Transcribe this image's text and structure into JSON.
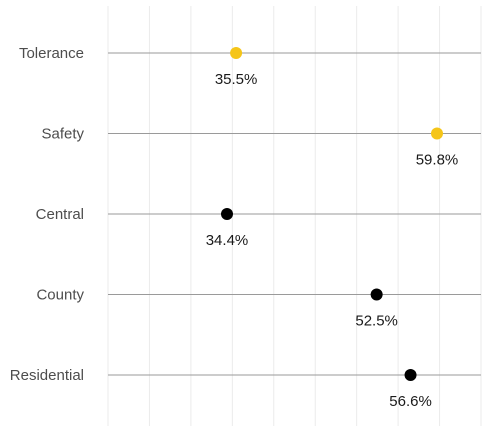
{
  "chart_data": {
    "type": "scatter",
    "title": "",
    "xlabel": "",
    "ylabel": "",
    "categories": [
      "Tolerance",
      "Safety",
      "Central",
      "County",
      "Residential"
    ],
    "values": [
      35.5,
      59.8,
      34.4,
      52.5,
      56.6
    ],
    "value_labels": [
      "35.5%",
      "59.8%",
      "34.4%",
      "52.5%",
      "56.6%"
    ],
    "highlight": [
      true,
      true,
      false,
      false,
      false
    ],
    "colors": {
      "highlight": "#f5c518",
      "default": "#000000"
    },
    "grid": true,
    "legend": "none"
  }
}
